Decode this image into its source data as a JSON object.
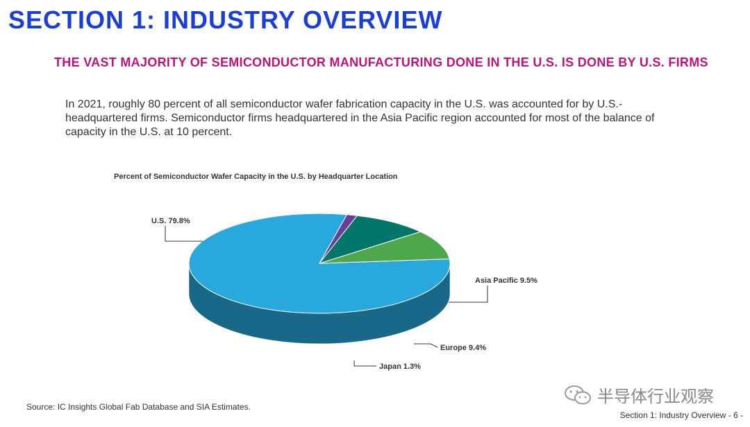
{
  "header": {
    "section_title": "SECTION 1: INDUSTRY OVERVIEW",
    "headline": "THE VAST MAJORITY OF SEMICONDUCTOR MANUFACTURING DONE IN THE U.S. IS DONE BY U.S. FIRMS"
  },
  "body": {
    "paragraph": "In 2021, roughly 80 percent of all semiconductor wafer fabrication capacity in the U.S. was accounted for by U.S.-headquartered firms. Semiconductor firms headquartered in the Asia Pacific region accounted for most of the balance of capacity in the U.S. at 10 percent."
  },
  "chart_data": {
    "type": "pie",
    "title": "Percent of Semiconductor Wafer Capacity in the U.S. by Headquarter Location",
    "slices": [
      {
        "name": "U.S.",
        "value": 79.8,
        "label": "U.S. 79.8%",
        "color": "#29a8de"
      },
      {
        "name": "Japan",
        "value": 1.3,
        "label": "Japan 1.3%",
        "color": "#6a3e9a"
      },
      {
        "name": "Europe",
        "value": 9.4,
        "label": "Europe 9.4%",
        "color": "#00766a"
      },
      {
        "name": "Asia Pacific",
        "value": 9.5,
        "label": "Asia Pacific 9.5%",
        "color": "#4ea74a"
      }
    ]
  },
  "source": "Source: IC Insights Global Fab Database and SIA Estimates.",
  "watermark": "半导体行业观察",
  "footer": "Section 1: Industry Overview - 6 -",
  "colors": {
    "title_blue": "#1a3fd8",
    "headline_magenta": "#c0137a"
  }
}
